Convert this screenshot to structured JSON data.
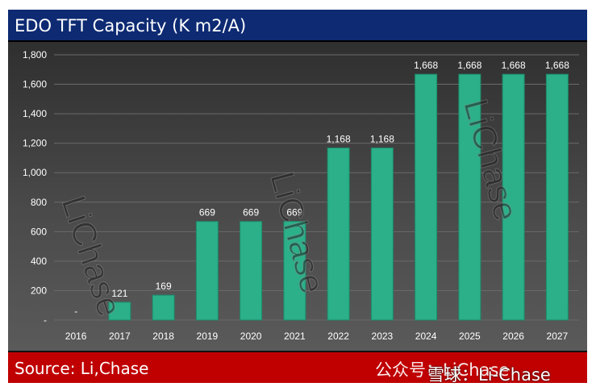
{
  "header": {
    "title": "EDO TFT Capacity (K m2/A)"
  },
  "footer": {
    "source": "Source: Li,Chase",
    "watermark_wechat": "公众号：LiChase",
    "watermark_xueqiu": "雪球：Li-Chase"
  },
  "watermark_text": "LiChase",
  "colors": {
    "bar": "#2bb089",
    "bar_dark": "#1d8a69",
    "title_bg": "#0d2a72",
    "source_bg": "#c00000",
    "text": "#ffffff"
  },
  "chart_data": {
    "type": "bar",
    "title": "EDO TFT Capacity (K m2/A)",
    "xlabel": "",
    "ylabel": "",
    "categories": [
      "2016",
      "2017",
      "2018",
      "2019",
      "2020",
      "2021",
      "2022",
      "2023",
      "2024",
      "2025",
      "2026",
      "2027"
    ],
    "values": [
      0,
      121,
      169,
      669,
      669,
      669,
      1168,
      1168,
      1668,
      1668,
      1668,
      1668
    ],
    "data_labels": [
      "-",
      "121",
      "169",
      "669",
      "669",
      "669",
      "1,168",
      "1,168",
      "1,668",
      "1,668",
      "1,668",
      "1,668"
    ],
    "ylim": [
      0,
      1800
    ],
    "yticks": [
      0,
      200,
      400,
      600,
      800,
      1000,
      1200,
      1400,
      1600,
      1800
    ],
    "ytick_labels": [
      "-",
      "200",
      "400",
      "600",
      "800",
      "1,000",
      "1,200",
      "1,400",
      "1,600",
      "1,800"
    ],
    "grid": true,
    "legend": "none"
  }
}
